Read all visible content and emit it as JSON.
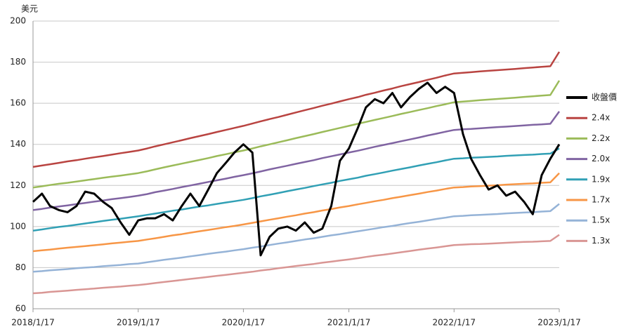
{
  "chart_data": {
    "type": "line",
    "y_label": "美元",
    "x": [
      "2018/1/17",
      "2018/2/17",
      "2018/3/17",
      "2018/4/17",
      "2018/5/17",
      "2018/6/17",
      "2018/7/17",
      "2018/8/17",
      "2018/9/17",
      "2018/10/17",
      "2018/11/17",
      "2018/12/17",
      "2019/1/17",
      "2019/2/17",
      "2019/3/17",
      "2019/4/17",
      "2019/5/17",
      "2019/6/17",
      "2019/7/17",
      "2019/8/17",
      "2019/9/17",
      "2019/10/17",
      "2019/11/17",
      "2019/12/17",
      "2020/1/17",
      "2020/2/17",
      "2020/3/17",
      "2020/4/17",
      "2020/5/17",
      "2020/6/17",
      "2020/7/17",
      "2020/8/17",
      "2020/9/17",
      "2020/10/17",
      "2020/11/17",
      "2020/12/17",
      "2021/1/17",
      "2021/2/17",
      "2021/3/17",
      "2021/4/17",
      "2021/5/17",
      "2021/6/17",
      "2021/7/17",
      "2021/8/17",
      "2021/9/17",
      "2021/10/17",
      "2021/11/17",
      "2021/12/17",
      "2022/1/17",
      "2022/2/17",
      "2022/3/17",
      "2022/4/17",
      "2022/5/17",
      "2022/6/17",
      "2022/7/17",
      "2022/8/17",
      "2022/9/17",
      "2022/10/17",
      "2022/11/17",
      "2022/12/17",
      "2023/1/17"
    ],
    "xlim": [
      "2018/1/17",
      "2023/1/17"
    ],
    "xticks": [
      "2018/1/17",
      "2019/1/17",
      "2020/1/17",
      "2021/1/17",
      "2022/1/17",
      "2023/1/17"
    ],
    "ylim": [
      60,
      200
    ],
    "yticks": [
      60,
      80,
      100,
      120,
      140,
      160,
      180,
      200
    ],
    "grid": true,
    "series": [
      {
        "name": "收盤價",
        "color": "#000000",
        "values": [
          112,
          116,
          110,
          108,
          107,
          110,
          117,
          116,
          112,
          109,
          102,
          96,
          103,
          104,
          104,
          106,
          103,
          110,
          116,
          110,
          118,
          126,
          131,
          136,
          140,
          136,
          86,
          95,
          99,
          100,
          98,
          102,
          97,
          99,
          110,
          132,
          138,
          148,
          158,
          162,
          160,
          165,
          158,
          163,
          167,
          170,
          165,
          168,
          165,
          145,
          133,
          125,
          118,
          120,
          115,
          117,
          112,
          106,
          125,
          133,
          140
        ]
      },
      {
        "name": "2.4x",
        "color": "#b94441",
        "values": [
          129,
          129.7,
          130.3,
          131,
          131.7,
          132.3,
          133,
          133.7,
          134.3,
          135,
          135.7,
          136.3,
          137,
          138,
          139,
          140,
          141,
          142,
          143,
          144,
          145,
          146,
          147,
          148,
          149,
          150.1,
          151.2,
          152.3,
          153.3,
          154.4,
          155.5,
          156.6,
          157.7,
          158.8,
          159.8,
          160.9,
          162,
          163,
          164.1,
          165.1,
          166.2,
          167.2,
          168.3,
          169.3,
          170.3,
          171.4,
          172.4,
          173.5,
          174.5,
          174.8,
          175.1,
          175.5,
          175.8,
          176.1,
          176.4,
          176.7,
          177.1,
          177.4,
          177.7,
          178,
          185
        ]
      },
      {
        "name": "2.2x",
        "color": "#9bbb59",
        "values": [
          119,
          119.6,
          120.2,
          120.8,
          121.3,
          121.9,
          122.5,
          123.1,
          123.7,
          124.3,
          124.8,
          125.4,
          126,
          126.9,
          127.8,
          128.8,
          129.7,
          130.6,
          131.5,
          132.4,
          133.3,
          134.3,
          135.2,
          136.1,
          137,
          138,
          139,
          140,
          141,
          142,
          143,
          144,
          145,
          146,
          147,
          148,
          149,
          150,
          150.9,
          151.9,
          152.8,
          153.8,
          154.8,
          155.7,
          156.7,
          157.6,
          158.6,
          159.5,
          160.5,
          160.8,
          161.1,
          161.5,
          161.8,
          162.1,
          162.4,
          162.7,
          163.1,
          163.4,
          163.7,
          164,
          171
        ]
      },
      {
        "name": "2.0x",
        "color": "#8064a2",
        "values": [
          108,
          108.6,
          109.2,
          109.8,
          110.3,
          110.9,
          111.5,
          112.1,
          112.7,
          113.3,
          113.8,
          114.4,
          115,
          115.8,
          116.7,
          117.5,
          118.3,
          119.2,
          120,
          120.8,
          121.7,
          122.5,
          123.3,
          124.2,
          125,
          125.9,
          126.8,
          127.8,
          128.7,
          129.6,
          130.5,
          131.4,
          132.3,
          133.3,
          134.2,
          135.1,
          136,
          136.9,
          137.8,
          138.8,
          139.7,
          140.6,
          141.5,
          142.4,
          143.3,
          144.3,
          145.2,
          146.1,
          147,
          147.3,
          147.5,
          147.8,
          148.1,
          148.4,
          148.6,
          148.9,
          149.2,
          149.5,
          149.7,
          150,
          156
        ]
      },
      {
        "name": "1.9x",
        "color": "#31a0b5",
        "values": [
          98,
          98.6,
          99.2,
          99.8,
          100.3,
          100.9,
          101.5,
          102.1,
          102.7,
          103.3,
          103.8,
          104.4,
          105,
          105.7,
          106.3,
          107,
          107.7,
          108.3,
          109,
          109.7,
          110.3,
          111,
          111.7,
          112.3,
          113,
          113.8,
          114.7,
          115.5,
          116.3,
          117.2,
          118,
          118.8,
          119.7,
          120.5,
          121.3,
          122.2,
          123,
          123.8,
          124.7,
          125.5,
          126.3,
          127.2,
          128,
          128.8,
          129.7,
          130.5,
          131.3,
          132.2,
          133,
          133.2,
          133.5,
          133.7,
          133.9,
          134.1,
          134.4,
          134.6,
          134.8,
          135,
          135.3,
          135.5,
          138
        ]
      },
      {
        "name": "1.7x",
        "color": "#f79646",
        "values": [
          88,
          88.4,
          88.8,
          89.3,
          89.7,
          90.1,
          90.5,
          90.9,
          91.3,
          91.8,
          92.2,
          92.6,
          93,
          93.7,
          94.3,
          95,
          95.7,
          96.3,
          97,
          97.7,
          98.3,
          99,
          99.7,
          100.3,
          101,
          101.8,
          102.5,
          103.3,
          104,
          104.8,
          105.5,
          106.3,
          107,
          107.8,
          108.5,
          109.3,
          110,
          110.8,
          111.5,
          112.3,
          113,
          113.8,
          114.5,
          115.3,
          116,
          116.8,
          117.5,
          118.3,
          119,
          119.2,
          119.5,
          119.7,
          119.9,
          120.1,
          120.4,
          120.6,
          120.8,
          121,
          121.3,
          121.5,
          126
        ]
      },
      {
        "name": "1.5x",
        "color": "#95b3d7",
        "values": [
          78,
          78.3,
          78.7,
          79,
          79.3,
          79.7,
          80,
          80.3,
          80.7,
          81,
          81.3,
          81.7,
          82,
          82.6,
          83.2,
          83.8,
          84.3,
          84.9,
          85.5,
          86.1,
          86.7,
          87.3,
          87.8,
          88.4,
          89,
          89.7,
          90.3,
          91,
          91.7,
          92.3,
          93,
          93.7,
          94.3,
          95,
          95.7,
          96.3,
          97,
          97.7,
          98.3,
          99,
          99.7,
          100.3,
          101,
          101.7,
          102.3,
          103,
          103.7,
          104.3,
          105,
          105.2,
          105.5,
          105.7,
          105.9,
          106.1,
          106.4,
          106.6,
          106.8,
          107,
          107.3,
          107.5,
          111
        ]
      },
      {
        "name": "1.3x",
        "color": "#d99694",
        "values": [
          67.5,
          67.8,
          68.2,
          68.5,
          68.8,
          69.2,
          69.5,
          69.8,
          70.2,
          70.5,
          70.8,
          71.2,
          71.5,
          72,
          72.5,
          73,
          73.5,
          74,
          74.5,
          75,
          75.5,
          76,
          76.5,
          77,
          77.5,
          78,
          78.6,
          79.1,
          79.7,
          80.2,
          80.8,
          81.3,
          81.8,
          82.4,
          82.9,
          83.5,
          84,
          84.6,
          85.2,
          85.8,
          86.3,
          86.9,
          87.5,
          88.1,
          88.7,
          89.3,
          89.8,
          90.4,
          91,
          91.2,
          91.4,
          91.5,
          91.7,
          91.9,
          92.1,
          92.3,
          92.5,
          92.6,
          92.8,
          93,
          96
        ]
      }
    ]
  }
}
